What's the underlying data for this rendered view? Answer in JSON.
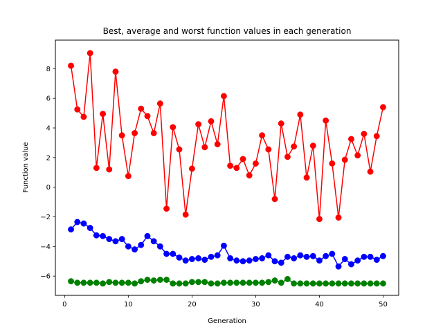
{
  "chart_data": {
    "type": "line",
    "title": "Best, average and worst function values in each generation",
    "xlabel": "Generation",
    "ylabel": "Function value",
    "xlim": [
      -1.45,
      52.45
    ],
    "ylim": [
      -7.3,
      9.93
    ],
    "xticks": [
      0,
      10,
      20,
      30,
      40,
      50
    ],
    "yticks": [
      -6,
      -4,
      -2,
      0,
      2,
      4,
      6,
      8
    ],
    "grid": false,
    "legend": "none",
    "x": [
      1,
      2,
      3,
      4,
      5,
      6,
      7,
      8,
      9,
      10,
      11,
      12,
      13,
      14,
      15,
      16,
      17,
      18,
      19,
      20,
      21,
      22,
      23,
      24,
      25,
      26,
      27,
      28,
      29,
      30,
      31,
      32,
      33,
      34,
      35,
      36,
      37,
      38,
      39,
      40,
      41,
      42,
      43,
      44,
      45,
      46,
      47,
      48,
      49,
      50
    ],
    "series": [
      {
        "color": "#ff0000",
        "marker": "circle",
        "values": [
          8.2,
          5.25,
          4.75,
          9.05,
          1.3,
          4.95,
          1.2,
          7.8,
          3.5,
          0.75,
          3.65,
          5.3,
          4.8,
          3.65,
          5.65,
          -1.45,
          4.05,
          2.55,
          -1.85,
          1.25,
          4.25,
          2.7,
          4.45,
          2.9,
          6.15,
          1.45,
          1.3,
          1.9,
          0.8,
          1.6,
          3.5,
          2.55,
          -0.8,
          4.3,
          2.05,
          2.75,
          4.9,
          0.65,
          2.8,
          -2.15,
          4.5,
          1.6,
          -2.05,
          1.85,
          3.25,
          2.15,
          3.6,
          1.05,
          3.45,
          5.4
        ]
      },
      {
        "color": "#0000ff",
        "marker": "circle",
        "values": [
          -2.85,
          -2.35,
          -2.45,
          -2.75,
          -3.25,
          -3.3,
          -3.5,
          -3.65,
          -3.5,
          -4.0,
          -4.2,
          -3.9,
          -3.3,
          -3.65,
          -4.0,
          -4.5,
          -4.5,
          -4.75,
          -4.95,
          -4.85,
          -4.8,
          -4.9,
          -4.7,
          -4.6,
          -3.95,
          -4.8,
          -4.95,
          -5.0,
          -4.95,
          -4.85,
          -4.8,
          -4.6,
          -5.0,
          -5.1,
          -4.7,
          -4.8,
          -4.6,
          -4.7,
          -4.65,
          -4.95,
          -4.65,
          -4.5,
          -5.35,
          -4.85,
          -5.2,
          -4.95,
          -4.7,
          -4.7,
          -4.9,
          -4.65
        ]
      },
      {
        "color": "#008000",
        "marker": "circle",
        "values": [
          -6.35,
          -6.45,
          -6.45,
          -6.45,
          -6.45,
          -6.5,
          -6.4,
          -6.45,
          -6.45,
          -6.45,
          -6.5,
          -6.35,
          -6.25,
          -6.3,
          -6.25,
          -6.25,
          -6.5,
          -6.5,
          -6.5,
          -6.4,
          -6.4,
          -6.4,
          -6.5,
          -6.5,
          -6.45,
          -6.45,
          -6.45,
          -6.45,
          -6.45,
          -6.45,
          -6.45,
          -6.4,
          -6.3,
          -6.45,
          -6.2,
          -6.5,
          -6.5,
          -6.5,
          -6.5,
          -6.5,
          -6.5,
          -6.5,
          -6.5,
          -6.5,
          -6.5,
          -6.5,
          -6.5,
          -6.5,
          -6.5,
          -6.5
        ]
      }
    ]
  }
}
